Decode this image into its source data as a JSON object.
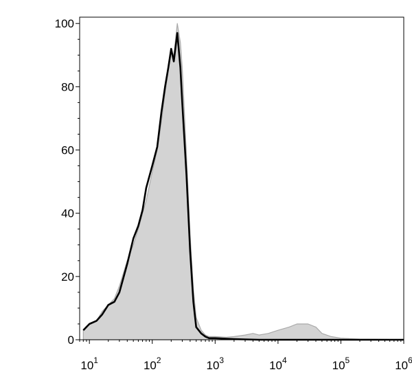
{
  "chart_data": {
    "type": "area",
    "title": "",
    "xlabel": "",
    "ylabel": "",
    "x_scale": "log",
    "xlim": [
      7,
      1000000
    ],
    "ylim": [
      0,
      102
    ],
    "grid": false,
    "legend": "none",
    "x_tick_labels": [
      {
        "base": "10",
        "exp": "1",
        "value": 10
      },
      {
        "base": "10",
        "exp": "2",
        "value": 100
      },
      {
        "base": "10",
        "exp": "3",
        "value": 1000
      },
      {
        "base": "10",
        "exp": "4",
        "value": 10000
      },
      {
        "base": "10",
        "exp": "5",
        "value": 100000
      },
      {
        "base": "10",
        "exp": "6",
        "value": 1000000
      }
    ],
    "y_tick_labels": [
      "0",
      "20",
      "40",
      "60",
      "80",
      "100"
    ],
    "y_tick_values": [
      0,
      20,
      40,
      60,
      80,
      100
    ],
    "series": [
      {
        "style": "filled",
        "color": "#d3d3d3",
        "edge_color": "#a9a9a9",
        "x": [
          8,
          10,
          13,
          16,
          20,
          25,
          30,
          40,
          50,
          60,
          70,
          80,
          100,
          120,
          140,
          160,
          180,
          200,
          220,
          250,
          280,
          300,
          350,
          400,
          450,
          500,
          600,
          700,
          800,
          1000,
          1500,
          2000,
          3000,
          4000,
          5000,
          7000,
          10000,
          15000,
          20000,
          25000,
          30000,
          40000,
          50000,
          70000,
          100000,
          200000,
          500000,
          1000000
        ],
        "y": [
          3,
          5,
          6,
          9,
          11,
          13,
          17,
          25,
          30,
          35,
          40,
          44,
          53,
          60,
          69,
          78,
          85,
          91,
          90,
          100,
          94,
          86,
          58,
          33,
          16,
          7,
          3,
          1.5,
          1,
          1,
          0.8,
          1,
          1.5,
          2,
          1.5,
          2,
          3,
          4,
          5,
          5,
          5,
          4,
          2,
          1,
          0.5,
          0.2,
          0.1,
          0
        ]
      },
      {
        "style": "line",
        "color": "#000000",
        "x": [
          8,
          10,
          13,
          16,
          20,
          25,
          30,
          40,
          50,
          60,
          70,
          80,
          100,
          120,
          140,
          160,
          180,
          200,
          220,
          250,
          280,
          300,
          350,
          400,
          450,
          500,
          600,
          700,
          800,
          1000,
          1500,
          2000,
          3000,
          5000,
          10000,
          30000,
          100000,
          1000000
        ],
        "y": [
          3,
          5,
          6,
          8,
          11,
          12,
          15,
          24,
          32,
          36,
          41,
          48,
          55,
          61,
          72,
          80,
          86,
          92,
          88,
          97,
          86,
          75,
          52,
          28,
          12,
          4,
          2,
          1,
          0.5,
          0.5,
          0.3,
          0.2,
          0.1,
          0,
          0,
          0,
          0,
          0
        ]
      }
    ]
  }
}
